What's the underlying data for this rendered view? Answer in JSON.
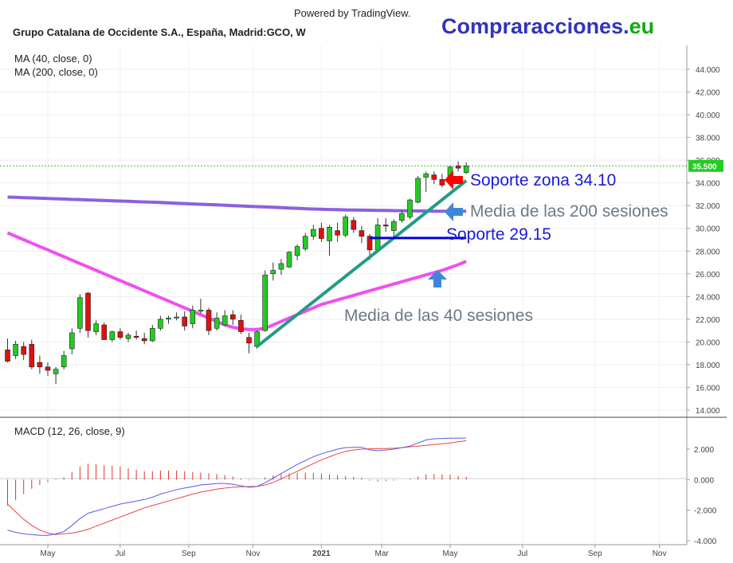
{
  "header": {
    "powered_by": "Powered by TradingView.",
    "instrument": "Grupo Catalana de Occidente S.A., España, Madrid:GCO, W",
    "brand_main": "Compraracciones.",
    "brand_tld": "eu"
  },
  "colors": {
    "bull": "#22cc22",
    "bear": "#dd1111",
    "ma200": "#8c60e0",
    "ma40": "#f050f0",
    "trendline": "#239b86",
    "support": "#0000dd",
    "price_tag": "#22cc22",
    "macd": "#5a5ae8",
    "signal": "#ee4444",
    "hist": "#dd3333",
    "arrow_red": "#ff0000",
    "arrow_blue": "#3f86d8",
    "brand_main": "#3333bb",
    "brand_tld": "#11aa11"
  },
  "chart_data": {
    "type": "candlestick",
    "title": "Grupo Catalana de Occidente S.A., España, Madrid:GCO, W",
    "timeframe": "W",
    "x_ticks": [
      "May",
      "Jul",
      "Sep",
      "Nov",
      "2021",
      "Mar",
      "May",
      "Jul",
      "Sep",
      "Nov"
    ],
    "price_axis": {
      "ylim": [
        13.4,
        45.5
      ],
      "ticks": [
        "44.000",
        "42.000",
        "40.000",
        "38.000",
        "36.000",
        "34.000",
        "32.000",
        "30.000",
        "28.000",
        "26.000",
        "24.000",
        "22.000",
        "20.000",
        "18.000",
        "16.000",
        "14.000"
      ]
    },
    "last_price": 35.5,
    "last_price_label": "35.500",
    "candles": [
      {
        "o": 19.3,
        "h": 20.3,
        "l": 18.2,
        "c": 18.3
      },
      {
        "o": 18.8,
        "h": 20.1,
        "l": 18.5,
        "c": 19.8
      },
      {
        "o": 19.6,
        "h": 20.0,
        "l": 18.4,
        "c": 18.9
      },
      {
        "o": 19.8,
        "h": 20.2,
        "l": 17.6,
        "c": 17.8
      },
      {
        "o": 18.2,
        "h": 18.8,
        "l": 17.2,
        "c": 17.8
      },
      {
        "o": 17.8,
        "h": 18.2,
        "l": 17.0,
        "c": 17.5
      },
      {
        "o": 17.2,
        "h": 17.8,
        "l": 16.3,
        "c": 17.6
      },
      {
        "o": 17.8,
        "h": 19.2,
        "l": 17.6,
        "c": 18.8
      },
      {
        "o": 19.4,
        "h": 21.2,
        "l": 18.9,
        "c": 20.8
      },
      {
        "o": 21.2,
        "h": 24.2,
        "l": 20.8,
        "c": 23.9
      },
      {
        "o": 24.3,
        "h": 24.4,
        "l": 20.4,
        "c": 21.0
      },
      {
        "o": 20.9,
        "h": 21.9,
        "l": 20.6,
        "c": 21.6
      },
      {
        "o": 21.5,
        "h": 21.7,
        "l": 20.2,
        "c": 20.2
      },
      {
        "o": 20.2,
        "h": 21.0,
        "l": 20.0,
        "c": 20.9
      },
      {
        "o": 20.9,
        "h": 21.2,
        "l": 20.2,
        "c": 20.4
      },
      {
        "o": 20.3,
        "h": 20.8,
        "l": 20.0,
        "c": 20.6
      },
      {
        "o": 20.5,
        "h": 21.0,
        "l": 20.2,
        "c": 20.4
      },
      {
        "o": 20.3,
        "h": 20.8,
        "l": 19.8,
        "c": 20.1
      },
      {
        "o": 20.1,
        "h": 21.5,
        "l": 20.0,
        "c": 21.2
      },
      {
        "o": 21.2,
        "h": 22.3,
        "l": 21.0,
        "c": 22.0
      },
      {
        "o": 22.0,
        "h": 22.3,
        "l": 21.6,
        "c": 22.1
      },
      {
        "o": 22.1,
        "h": 22.6,
        "l": 21.9,
        "c": 22.2
      },
      {
        "o": 22.2,
        "h": 22.7,
        "l": 21.0,
        "c": 21.4
      },
      {
        "o": 21.6,
        "h": 23.2,
        "l": 21.2,
        "c": 22.8
      },
      {
        "o": 22.7,
        "h": 23.8,
        "l": 22.5,
        "c": 22.8
      },
      {
        "o": 22.8,
        "h": 23.0,
        "l": 20.6,
        "c": 21.0
      },
      {
        "o": 21.2,
        "h": 22.6,
        "l": 21.0,
        "c": 22.1
      },
      {
        "o": 21.5,
        "h": 22.8,
        "l": 21.4,
        "c": 22.3
      },
      {
        "o": 22.4,
        "h": 22.8,
        "l": 21.5,
        "c": 22.0
      },
      {
        "o": 21.9,
        "h": 22.4,
        "l": 20.7,
        "c": 20.9
      },
      {
        "o": 20.4,
        "h": 20.8,
        "l": 19.0,
        "c": 19.9
      },
      {
        "o": 19.6,
        "h": 21.0,
        "l": 19.4,
        "c": 20.9
      },
      {
        "o": 21.0,
        "h": 26.3,
        "l": 20.9,
        "c": 25.9
      },
      {
        "o": 26.0,
        "h": 27.0,
        "l": 25.4,
        "c": 26.3
      },
      {
        "o": 26.4,
        "h": 27.3,
        "l": 25.9,
        "c": 26.9
      },
      {
        "o": 26.6,
        "h": 28.0,
        "l": 26.5,
        "c": 27.9
      },
      {
        "o": 27.6,
        "h": 28.6,
        "l": 27.2,
        "c": 28.4
      },
      {
        "o": 28.2,
        "h": 29.6,
        "l": 28.0,
        "c": 29.3
      },
      {
        "o": 29.3,
        "h": 30.3,
        "l": 29.0,
        "c": 29.9
      },
      {
        "o": 30.0,
        "h": 30.5,
        "l": 28.8,
        "c": 29.1
      },
      {
        "o": 28.9,
        "h": 30.3,
        "l": 27.6,
        "c": 30.1
      },
      {
        "o": 29.8,
        "h": 30.5,
        "l": 28.8,
        "c": 29.4
      },
      {
        "o": 29.4,
        "h": 31.2,
        "l": 29.2,
        "c": 31.0
      },
      {
        "o": 30.7,
        "h": 31.0,
        "l": 29.6,
        "c": 29.9
      },
      {
        "o": 29.8,
        "h": 30.2,
        "l": 28.7,
        "c": 29.3
      },
      {
        "o": 29.3,
        "h": 29.5,
        "l": 27.2,
        "c": 28.1
      },
      {
        "o": 28.1,
        "h": 30.9,
        "l": 27.9,
        "c": 30.3
      },
      {
        "o": 30.3,
        "h": 30.9,
        "l": 29.7,
        "c": 30.2
      },
      {
        "o": 29.8,
        "h": 30.8,
        "l": 29.2,
        "c": 30.6
      },
      {
        "o": 30.7,
        "h": 31.6,
        "l": 30.5,
        "c": 31.3
      },
      {
        "o": 31.0,
        "h": 32.6,
        "l": 30.8,
        "c": 32.5
      },
      {
        "o": 32.3,
        "h": 34.6,
        "l": 32.2,
        "c": 34.4
      },
      {
        "o": 34.5,
        "h": 35.0,
        "l": 33.2,
        "c": 34.8
      },
      {
        "o": 34.7,
        "h": 35.0,
        "l": 33.9,
        "c": 34.3
      },
      {
        "o": 34.3,
        "h": 34.8,
        "l": 33.6,
        "c": 33.8
      },
      {
        "o": 34.0,
        "h": 35.5,
        "l": 33.7,
        "c": 35.4
      },
      {
        "o": 35.5,
        "h": 35.9,
        "l": 35.0,
        "c": 35.3
      },
      {
        "o": 34.9,
        "h": 35.8,
        "l": 34.8,
        "c": 35.5
      }
    ],
    "ma40": [
      29.6,
      29.3,
      29.0,
      28.7,
      28.4,
      28.1,
      27.8,
      27.5,
      27.2,
      26.9,
      26.6,
      26.3,
      26.0,
      25.7,
      25.4,
      25.1,
      24.8,
      24.5,
      24.2,
      23.9,
      23.6,
      23.3,
      23.0,
      22.7,
      22.4,
      22.1,
      21.8,
      21.5,
      21.3,
      21.15,
      21.1,
      21.1,
      21.2,
      21.5,
      21.8,
      22.1,
      22.4,
      22.7,
      23.0,
      23.3,
      23.5,
      23.7,
      23.9,
      24.1,
      24.3,
      24.5,
      24.7,
      24.9,
      25.1,
      25.3,
      25.5,
      25.7,
      25.9,
      26.1,
      26.3,
      26.55,
      26.8,
      27.1
    ],
    "ma200": [
      32.75,
      32.73,
      32.7,
      32.68,
      32.65,
      32.63,
      32.6,
      32.58,
      32.55,
      32.53,
      32.5,
      32.48,
      32.45,
      32.43,
      32.4,
      32.38,
      32.35,
      32.32,
      32.3,
      32.27,
      32.24,
      32.21,
      32.18,
      32.15,
      32.12,
      32.09,
      32.06,
      32.03,
      32.0,
      31.97,
      31.94,
      31.91,
      31.88,
      31.85,
      31.82,
      31.79,
      31.76,
      31.73,
      31.7,
      31.68,
      31.66,
      31.64,
      31.62,
      31.61,
      31.6,
      31.59,
      31.58,
      31.57,
      31.56,
      31.55,
      31.54,
      31.53,
      31.52,
      31.51,
      31.5,
      31.5,
      31.5,
      31.5
    ],
    "trendline": [
      [
        31,
        19.6
      ],
      [
        57,
        34.2
      ]
    ],
    "support_line": {
      "value": 29.15,
      "from": 45,
      "to": 57
    },
    "macd_panel": {
      "title": "MACD (12, 26, close, 9)",
      "ylim": [
        -4.3,
        3.4
      ],
      "ticks": [
        "2.000",
        "0.000",
        "-2.000",
        "-4.000"
      ],
      "macd": [
        -3.3,
        -3.45,
        -3.55,
        -3.6,
        -3.65,
        -3.65,
        -3.55,
        -3.4,
        -3.0,
        -2.55,
        -2.2,
        -2.05,
        -1.9,
        -1.75,
        -1.6,
        -1.5,
        -1.4,
        -1.3,
        -1.15,
        -0.95,
        -0.8,
        -0.65,
        -0.55,
        -0.45,
        -0.35,
        -0.3,
        -0.25,
        -0.25,
        -0.3,
        -0.4,
        -0.5,
        -0.45,
        -0.2,
        0.1,
        0.4,
        0.7,
        1.0,
        1.25,
        1.5,
        1.7,
        1.85,
        2.0,
        2.1,
        2.12,
        2.12,
        1.95,
        1.9,
        1.95,
        2.0,
        2.1,
        2.2,
        2.4,
        2.6,
        2.68,
        2.7,
        2.72,
        2.72,
        2.73
      ],
      "signal": [
        -1.6,
        -2.1,
        -2.6,
        -3.0,
        -3.3,
        -3.5,
        -3.6,
        -3.55,
        -3.5,
        -3.4,
        -3.25,
        -3.05,
        -2.85,
        -2.65,
        -2.45,
        -2.25,
        -2.05,
        -1.85,
        -1.7,
        -1.55,
        -1.4,
        -1.25,
        -1.1,
        -0.95,
        -0.82,
        -0.72,
        -0.62,
        -0.55,
        -0.5,
        -0.47,
        -0.45,
        -0.44,
        -0.35,
        -0.18,
        0.05,
        0.3,
        0.55,
        0.8,
        1.05,
        1.3,
        1.5,
        1.7,
        1.85,
        1.95,
        2.0,
        2.02,
        2.03,
        2.04,
        2.06,
        2.1,
        2.15,
        2.2,
        2.25,
        2.3,
        2.35,
        2.4,
        2.48,
        2.55
      ],
      "histogram": [
        -1.7,
        -1.35,
        -0.95,
        -0.6,
        -0.35,
        -0.15,
        0.05,
        0.15,
        0.5,
        0.85,
        1.05,
        1.0,
        0.95,
        0.9,
        0.85,
        0.75,
        0.65,
        0.55,
        0.55,
        0.6,
        0.6,
        0.6,
        0.55,
        0.5,
        0.47,
        0.42,
        0.37,
        0.3,
        0.2,
        0.07,
        -0.05,
        -0.01,
        0.15,
        0.28,
        0.35,
        0.4,
        0.45,
        0.45,
        0.45,
        0.4,
        0.35,
        0.3,
        0.25,
        0.17,
        0.12,
        -0.07,
        -0.13,
        -0.09,
        -0.06,
        0.0,
        0.05,
        0.2,
        0.35,
        0.38,
        0.35,
        0.32,
        0.24,
        0.18
      ]
    }
  },
  "indicators": {
    "ma40_label": "MA (40, close, 0)",
    "ma200_label": "MA (200, close, 0)"
  },
  "annotations": {
    "support_zone": "Soporte zona 34.10",
    "ma200_note": "Media de las 200 sesiones",
    "support_2915": "Soporte 29.15",
    "ma40_note": "Media de las 40 sesiones"
  }
}
